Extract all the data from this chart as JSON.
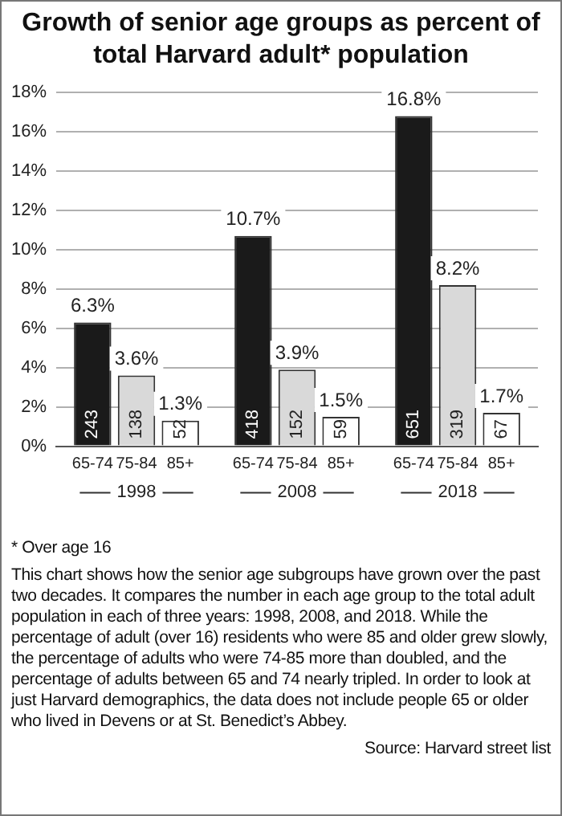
{
  "chart_data": {
    "type": "bar",
    "title": "Growth of senior age groups as percent of total Harvard adult* population",
    "categories": [
      "1998",
      "2008",
      "2018"
    ],
    "series": [
      {
        "name": "65-74",
        "color": "#1a1a1a",
        "values": [
          6.3,
          10.7,
          16.8
        ],
        "value_labels": [
          "6.3%",
          "10.7%",
          "16.8%"
        ]
      },
      {
        "name": "75-84",
        "color": "#d9d9d9",
        "values": [
          3.6,
          3.9,
          8.2
        ],
        "value_labels": [
          "3.6%",
          "3.9%",
          "8.2%"
        ]
      },
      {
        "name": "85+",
        "color": "#ffffff",
        "values": [
          1.3,
          1.5,
          1.7
        ],
        "value_labels": [
          "1.3%",
          "1.5%",
          "1.7%"
        ]
      }
    ],
    "ylim": [
      0,
      18
    ],
    "yticks": [
      {
        "value": 0,
        "label": "0%"
      },
      {
        "value": 2,
        "label": "2%"
      },
      {
        "value": 4,
        "label": "4%"
      },
      {
        "value": 6,
        "label": "6%"
      },
      {
        "value": 8,
        "label": "8%"
      },
      {
        "value": 10,
        "label": "10%"
      },
      {
        "value": 12,
        "label": "12%"
      },
      {
        "value": 14,
        "label": "14%"
      },
      {
        "value": 16,
        "label": "16%"
      },
      {
        "value": 18,
        "label": "18%"
      }
    ],
    "grid": "y",
    "legend": false,
    "annotations": [
      "243",
      "418",
      "651",
      "138",
      "152",
      "319",
      "52",
      "59",
      "67",
      "* Over age 16",
      "This chart shows how the senior age subgroups have grown over the past two decades. It compares the number in each age group to the total adult population in each of three years: 1998, 2008, and 2018. While the percentage of adult (over 16) residents who were 85 and older grew slowly, the percentage of adults who were 74-85 more than doubled, and the percentage of adults between 65 and 74 nearly tripled. In order to look at just Harvard demographics, the data does not include people 65 or older who lived in Devens or at St. Benedict’s Abbey.",
      "Source: Harvard street list"
    ]
  }
}
